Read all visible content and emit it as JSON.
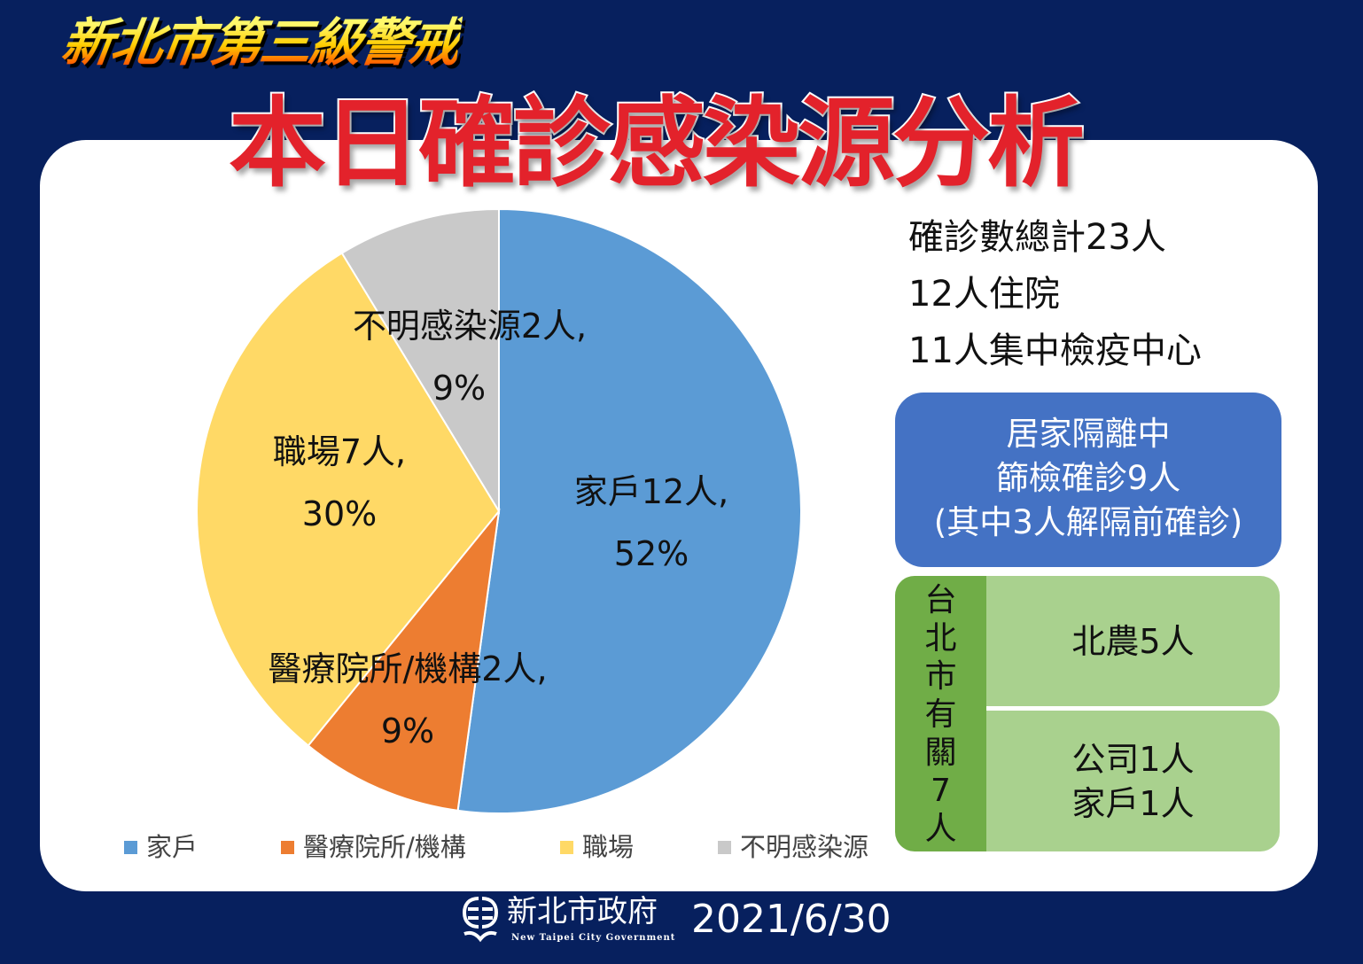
{
  "header": {
    "alert_level": "新北市第三級警戒",
    "title": "本日確診感染源分析"
  },
  "chart_data": {
    "type": "pie",
    "title": "本日確診感染源分析",
    "slices": [
      {
        "name": "家戶",
        "value": 12,
        "percent": "52%",
        "label": "家戶12人,",
        "color": "#5b9bd5"
      },
      {
        "name": "醫療院所/機構",
        "value": 2,
        "percent": "9%",
        "label": "醫療院所/機構2人,",
        "color": "#ed7d31"
      },
      {
        "name": "職場",
        "value": 7,
        "percent": "30%",
        "label": "職場7人,",
        "color": "#ffd966"
      },
      {
        "name": "不明感染源",
        "value": 2,
        "percent": "9%",
        "label": "不明感染源2人,",
        "color": "#c9c9c9"
      }
    ],
    "start_angle_deg": 0,
    "direction": "clockwise",
    "legend": "bottom"
  },
  "stats": {
    "total": "確診數總計23人",
    "hospitalized": "12人住院",
    "quarantine_center": "11人集中檢疫中心"
  },
  "home_isolation": {
    "line1": "居家隔離中",
    "line2": "篩檢確診9人",
    "line3": "(其中3人解隔前確診)"
  },
  "taipei_related": {
    "label": "台北市有關7人",
    "chars": [
      "台",
      "北",
      "市",
      "有",
      "關",
      "7",
      "人"
    ],
    "row1": "北農5人",
    "row2_line1": "公司1人",
    "row2_line2": "家戶1人"
  },
  "footer": {
    "org_name": "新北市政府",
    "org_name_en": "New Taipei City Government",
    "date": "2021/6/30"
  }
}
